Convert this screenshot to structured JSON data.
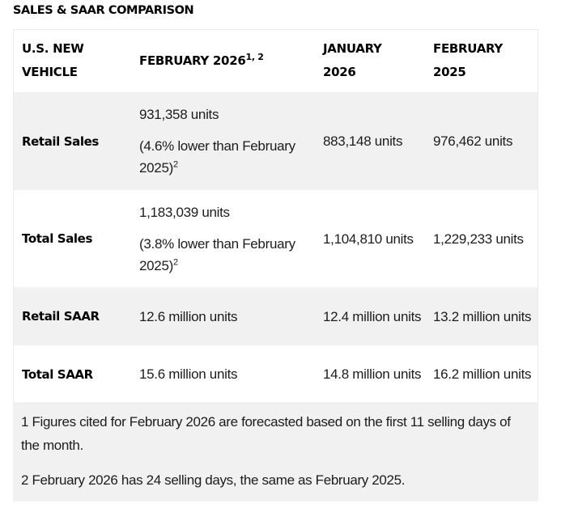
{
  "title": "SALES & SAAR COMPARISON",
  "table": {
    "headers": [
      {
        "line1": "U.S. NEW",
        "line2": "VEHICLE"
      },
      {
        "text": "FEBRUARY 2026",
        "sup": "1, 2"
      },
      {
        "line1": "JANUARY",
        "line2": "2026"
      },
      {
        "line1": "FEBRUARY",
        "line2": "2025"
      }
    ],
    "rows": [
      {
        "label": "Retail Sales",
        "feb2026": "931,358 units",
        "feb2026_note": "(4.6% lower than February 2025)",
        "feb2026_note_sup": "2",
        "jan2026": "883,148 units",
        "feb2025": "976,462 units"
      },
      {
        "label": "Total Sales",
        "feb2026": "1,183,039 units",
        "feb2026_note": "(3.8% lower than February 2025)",
        "feb2026_note_sup": "2",
        "jan2026": "1,104,810 units",
        "feb2025": "1,229,233 units"
      },
      {
        "label": "Retail SAAR",
        "feb2026": "12.6 million units",
        "jan2026": "12.4 million units",
        "feb2025": "13.2 million units"
      },
      {
        "label": "Total SAAR",
        "feb2026": "15.6 million units",
        "jan2026": "14.8 million units",
        "feb2025": "16.2 million units"
      }
    ]
  },
  "footnotes": [
    "1 Figures cited for February 2026 are forecasted based on the first 11 selling days of the month.",
    "2 February 2026 has 24 selling days, the same as February 2025."
  ]
}
